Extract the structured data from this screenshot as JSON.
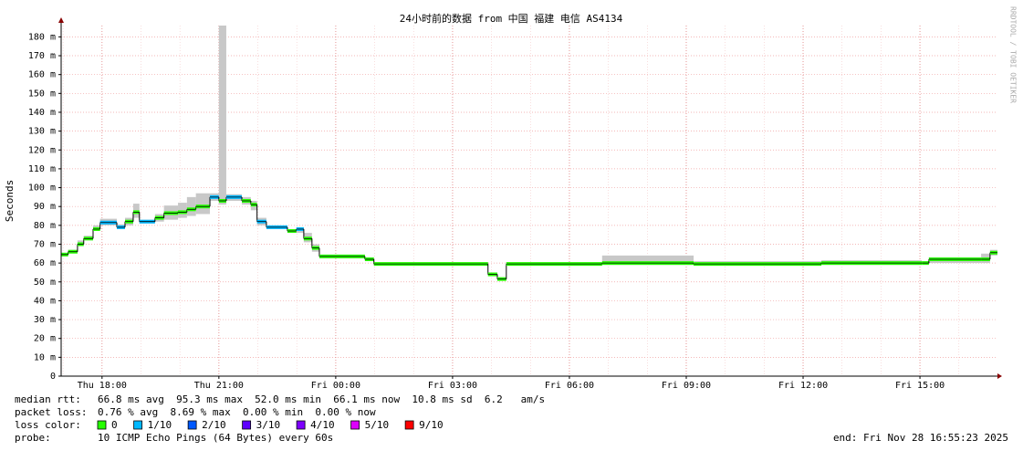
{
  "chart_data": {
    "type": "smokeping",
    "title": "24小时前的数据 from 中国 福建 电信 AS4134",
    "y_label": "Seconds",
    "watermark": "RRDTOOL / TOBI OETIKER",
    "xlim": [
      16.95,
      40.99
    ],
    "xticks": [
      {
        "value": 18,
        "label": "Thu 18:00"
      },
      {
        "value": 21,
        "label": "Thu 21:00"
      },
      {
        "value": 24,
        "label": "Fri 00:00"
      },
      {
        "value": 27,
        "label": "Fri 03:00"
      },
      {
        "value": 30,
        "label": "Fri 06:00"
      },
      {
        "value": 33,
        "label": "Fri 09:00"
      },
      {
        "value": 36,
        "label": "Fri 12:00"
      },
      {
        "value": 39,
        "label": "Fri 15:00"
      }
    ],
    "ylim": [
      0,
      186
    ],
    "yticks": [
      0,
      {
        "value": 10,
        "label": "10 m"
      },
      {
        "value": 20,
        "label": "20 m"
      },
      {
        "value": 30,
        "label": "30 m"
      },
      {
        "value": 40,
        "label": "40 m"
      },
      {
        "value": 50,
        "label": "50 m"
      },
      {
        "value": 60,
        "label": "60 m"
      },
      {
        "value": 70,
        "label": "70 m"
      },
      {
        "value": 80,
        "label": "80 m"
      },
      {
        "value": 90,
        "label": "90 m"
      },
      {
        "value": 100,
        "label": "100 m"
      },
      {
        "value": 110,
        "label": "110 m"
      },
      {
        "value": 120,
        "label": "120 m"
      },
      {
        "value": 130,
        "label": "130 m"
      },
      {
        "value": 140,
        "label": "140 m"
      },
      {
        "value": 150,
        "label": "150 m"
      },
      {
        "value": 160,
        "label": "160 m"
      },
      {
        "value": 170,
        "label": "170 m"
      },
      {
        "value": 180,
        "label": "180 m"
      }
    ],
    "grid": true,
    "x": [
      16.95,
      17.13,
      17.37,
      17.53,
      17.77,
      17.95,
      18.38,
      18.59,
      18.8,
      18.96,
      19.36,
      19.59,
      19.95,
      20.18,
      20.41,
      20.77,
      21.0,
      21.19,
      21.59,
      21.82,
      21.98,
      22.22,
      22.76,
      22.99,
      23.18,
      23.39,
      23.58,
      24.75,
      24.98,
      27.91,
      28.15,
      28.38,
      30.84,
      33.19,
      36.47,
      39.05,
      39.23,
      40.57,
      40.8
    ],
    "median": [
      64.5,
      66,
      70,
      73,
      78,
      81.5,
      79,
      82,
      87,
      82,
      84,
      86.5,
      87,
      88.5,
      90,
      95,
      93,
      95,
      93,
      91,
      82,
      79,
      77,
      78,
      73,
      68,
      63.5,
      62,
      59.5,
      54,
      51.5,
      59.5,
      60,
      59.5,
      60,
      60,
      62,
      62,
      65.5
    ],
    "loss": [
      0,
      0,
      0,
      0,
      0,
      1,
      1,
      0,
      0,
      1,
      0,
      0,
      0,
      0,
      0,
      1,
      0,
      1,
      0,
      0,
      1,
      1,
      0,
      1,
      0,
      0,
      0,
      0,
      0,
      0,
      0,
      0,
      0,
      0,
      0,
      0,
      0,
      0,
      0
    ],
    "smoke_low": [
      64,
      65.5,
      69,
      72,
      77,
      80,
      78,
      80,
      84,
      81,
      82,
      83,
      84,
      85,
      86,
      93,
      91,
      93,
      91,
      88,
      80,
      78,
      76,
      76,
      71,
      66,
      63,
      61,
      59,
      53,
      51,
      59,
      59,
      59,
      59,
      59.5,
      60,
      60,
      64
    ],
    "smoke_high": [
      65.5,
      67,
      72,
      74.5,
      80,
      83.5,
      80.5,
      84,
      91.5,
      83,
      86,
      90.5,
      92,
      95,
      97,
      97,
      186,
      96.5,
      95,
      93,
      84,
      80,
      78,
      79,
      76,
      70,
      64.5,
      63,
      60.5,
      55,
      52.5,
      60.5,
      64,
      61,
      61.5,
      61,
      63,
      65,
      67
    ],
    "median_rtt_label": "median rtt:",
    "median_rtt": "66.8 ms avg  95.3 ms max  52.0 ms min  66.1 ms now  10.8 ms sd  6.2   am/s",
    "packet_loss_label": "packet loss:",
    "packet_loss": "0.76 % avg  8.69 % max  0.00 % min  0.00 % now",
    "loss_color_label": "loss color:",
    "loss_colors": [
      {
        "name": "0",
        "color": "#26ff00"
      },
      {
        "name": "1/10",
        "color": "#00b8ff"
      },
      {
        "name": "2/10",
        "color": "#0059ff"
      },
      {
        "name": "3/10",
        "color": "#5e00ff"
      },
      {
        "name": "4/10",
        "color": "#7e00ff"
      },
      {
        "name": "5/10",
        "color": "#dd00ff"
      },
      {
        "name": "9/10",
        "color": "#ff0000"
      }
    ],
    "probe_label": "probe:",
    "probe": "10 ICMP Echo Pings (64 Bytes) every 60s",
    "end": "end: Fri Nov 28 16:55:23 2025"
  }
}
